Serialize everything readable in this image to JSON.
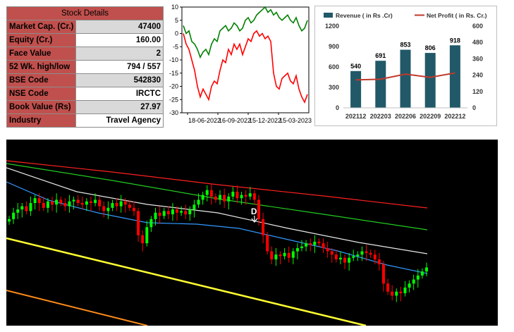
{
  "stock_details": {
    "title": "Stock Details",
    "rows": [
      {
        "label": "Market Cap. (Cr.)",
        "value": "47400"
      },
      {
        "label": "Equity (Cr.)",
        "value": "160.00"
      },
      {
        "label": "Face Value",
        "value": "2"
      },
      {
        "label": "52 Wk. high/low",
        "value": "794 / 557"
      },
      {
        "label": "BSE Code",
        "value": "542830"
      },
      {
        "label": "NSE Code",
        "value": "IRCTC"
      },
      {
        "label": "Book Value (Rs)",
        "value": "27.97"
      },
      {
        "label": "Industry",
        "value": "Travel Agency"
      }
    ]
  },
  "chart_data": [
    {
      "type": "line",
      "ylim": [
        -30,
        10
      ],
      "yticks": [
        10,
        5,
        0,
        -5,
        -10,
        -15,
        -20,
        -25,
        -30
      ],
      "x_tick_labels": [
        "18-06-2022",
        "16-09-2022",
        "15-12-2022",
        "15-03-2023"
      ],
      "colors": [
        "#008000",
        "#ff0000"
      ],
      "series": [
        {
          "values": [
            3,
            0,
            1,
            -3,
            -4,
            -6,
            -9,
            -7,
            -6,
            -8,
            -4,
            -2,
            -3,
            1,
            2,
            3,
            1,
            2,
            4,
            3,
            1,
            2,
            5,
            6,
            4,
            5,
            7,
            8,
            9,
            10,
            8,
            9,
            7,
            8,
            6,
            5,
            6,
            7,
            5,
            4,
            6,
            3,
            1,
            2,
            5
          ]
        },
        {
          "values": [
            0,
            -4,
            -6,
            -10,
            -14,
            -20,
            -24,
            -21,
            -23,
            -25,
            -20,
            -18,
            -19,
            -14,
            -10,
            -11,
            -6,
            -8,
            -4,
            -6,
            -4,
            -8,
            -5,
            -2,
            -3,
            0,
            1,
            -1,
            0,
            -2,
            -1,
            -3,
            -15,
            -20,
            -21,
            -17,
            -16,
            -15,
            -18,
            -19,
            -16,
            -21,
            -24,
            -26,
            -23
          ]
        }
      ]
    },
    {
      "type": "bar",
      "categories": [
        "202112",
        "202203",
        "202206",
        "202209",
        "202212"
      ],
      "series": [
        {
          "name": "Revenue ( in Rs .Cr)",
          "values": [
            540,
            691,
            853,
            806,
            918
          ],
          "color": "#215968",
          "axis": "left"
        },
        {
          "name": "Net Profit ( in Rs. Cr.)",
          "type": "line",
          "values": [
            205,
            210,
            248,
            224,
            256
          ],
          "color": "#c0392b",
          "axis": "right"
        }
      ],
      "ylim_left": [
        0,
        1200
      ],
      "yticks_left": [
        0,
        300,
        600,
        900,
        1200
      ],
      "ylim_right": [
        0,
        600
      ],
      "yticks_right": [
        0,
        120,
        240,
        360,
        480,
        600
      ],
      "legend": "top"
    },
    {
      "type": "candlestick",
      "background": "#000000",
      "up_color": "#00ff00",
      "down_color": "#ff0000",
      "annotation": "D",
      "closes": [
        640,
        648,
        652,
        656,
        650,
        660,
        666,
        660,
        654,
        662,
        658,
        664,
        660,
        656,
        662,
        664,
        660,
        658,
        662,
        660,
        664,
        656,
        650,
        654,
        660,
        656,
        662,
        658,
        654,
        650,
        620,
        610,
        630,
        640,
        648,
        644,
        650,
        646,
        652,
        648,
        650,
        646,
        652,
        658,
        664,
        670,
        676,
        668,
        664,
        670,
        662,
        668,
        674,
        666,
        670,
        668,
        672,
        664,
        640,
        620,
        600,
        590,
        596,
        594,
        598,
        592,
        600,
        604,
        606,
        610,
        608,
        612,
        610,
        604,
        600,
        596,
        590,
        592,
        586,
        592,
        594,
        596,
        600,
        598,
        596,
        590,
        584,
        560,
        550,
        545,
        550,
        548,
        555,
        560,
        565,
        570,
        575,
        580
      ]
    }
  ]
}
